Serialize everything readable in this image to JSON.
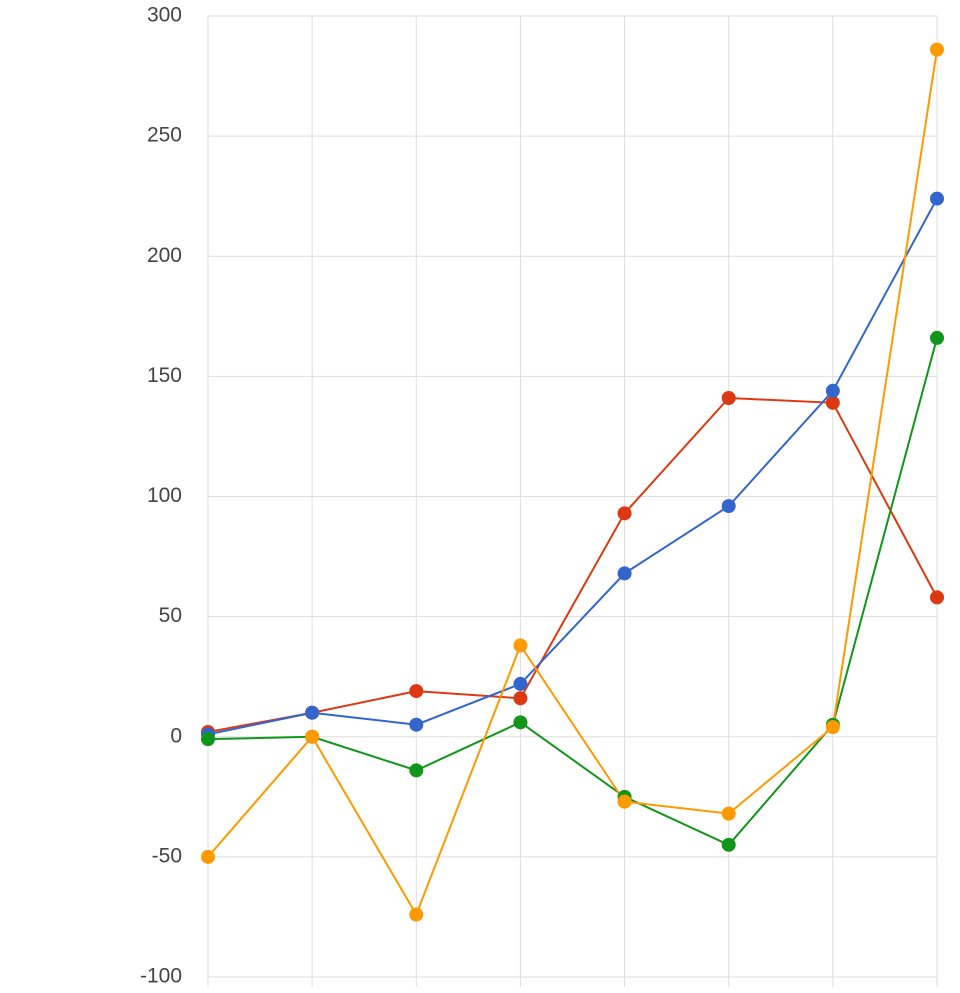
{
  "chart_data": {
    "type": "line",
    "categories": [
      null,
      null,
      null,
      null,
      null,
      null,
      null,
      null
    ],
    "series": [
      {
        "color": "#dc3912",
        "values": [
          2,
          10,
          19,
          16,
          93,
          141,
          139,
          58
        ]
      },
      {
        "color": "#3366cc",
        "values": [
          1,
          10,
          5,
          22,
          68,
          96,
          144,
          224
        ]
      },
      {
        "color": "#109618",
        "values": [
          -1,
          0,
          -14,
          6,
          -25,
          -45,
          5,
          166
        ]
      },
      {
        "color": "#ff9900",
        "values": [
          -50,
          0,
          -74,
          38,
          -27,
          -32,
          4,
          286
        ]
      }
    ],
    "ylim": [
      -100,
      300
    ],
    "yticks": [
      -100,
      -50,
      0,
      50,
      100,
      150,
      200,
      250,
      300
    ],
    "grid": true
  }
}
